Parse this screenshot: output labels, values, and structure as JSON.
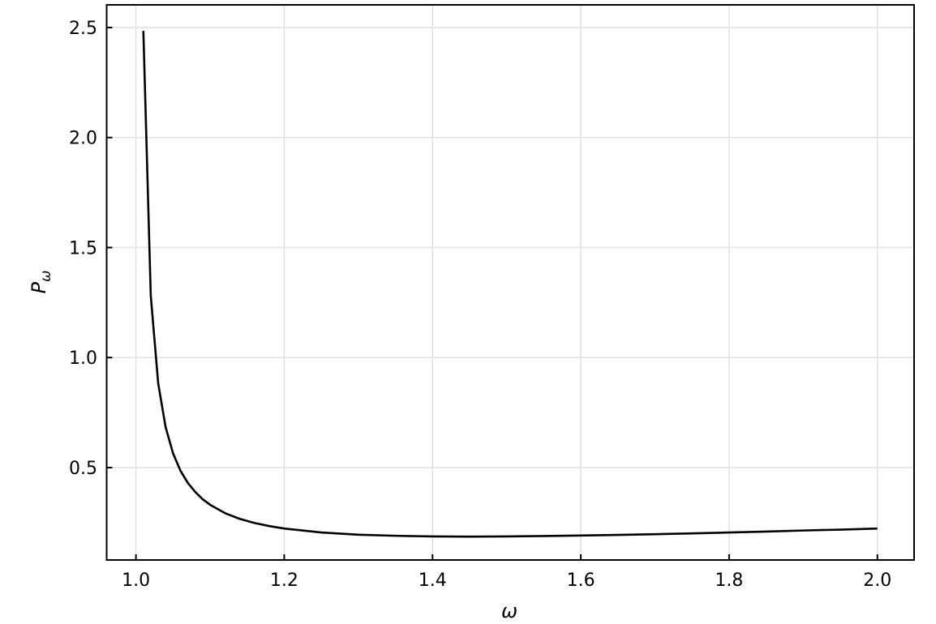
{
  "chart_data": {
    "type": "line",
    "title": "",
    "xlabel": "ω",
    "ylabel": "P",
    "ylabel_subscript": "ω",
    "xlim": [
      0.9605,
      2.0495
    ],
    "ylim": [
      0.08,
      2.603
    ],
    "grid": true,
    "xticks": [
      1.0,
      1.2,
      1.4,
      1.6,
      1.8,
      2.0
    ],
    "xtick_labels": [
      "1.0",
      "1.2",
      "1.4",
      "1.6",
      "1.8",
      "2.0"
    ],
    "yticks": [
      0.5,
      1.0,
      1.5,
      2.0,
      2.5
    ],
    "ytick_labels": [
      "0.5",
      "1.0",
      "1.5",
      "2.0",
      "2.5"
    ],
    "series": [
      {
        "color": "#000000",
        "x": [
          1.01,
          1.02,
          1.03,
          1.04,
          1.05,
          1.06,
          1.07,
          1.08,
          1.09,
          1.1,
          1.12,
          1.14,
          1.16,
          1.18,
          1.2,
          1.25,
          1.3,
          1.35,
          1.4,
          1.45,
          1.5,
          1.55,
          1.6,
          1.65,
          1.7,
          1.75,
          1.8,
          1.85,
          1.9,
          1.95,
          2.0
        ],
        "y": [
          2.485,
          1.281,
          0.883,
          0.684,
          0.565,
          0.486,
          0.43,
          0.389,
          0.356,
          0.331,
          0.293,
          0.267,
          0.248,
          0.234,
          0.223,
          0.205,
          0.195,
          0.19,
          0.187,
          0.186,
          0.187,
          0.189,
          0.191,
          0.194,
          0.197,
          0.201,
          0.205,
          0.209,
          0.214,
          0.218,
          0.223
        ]
      }
    ]
  }
}
